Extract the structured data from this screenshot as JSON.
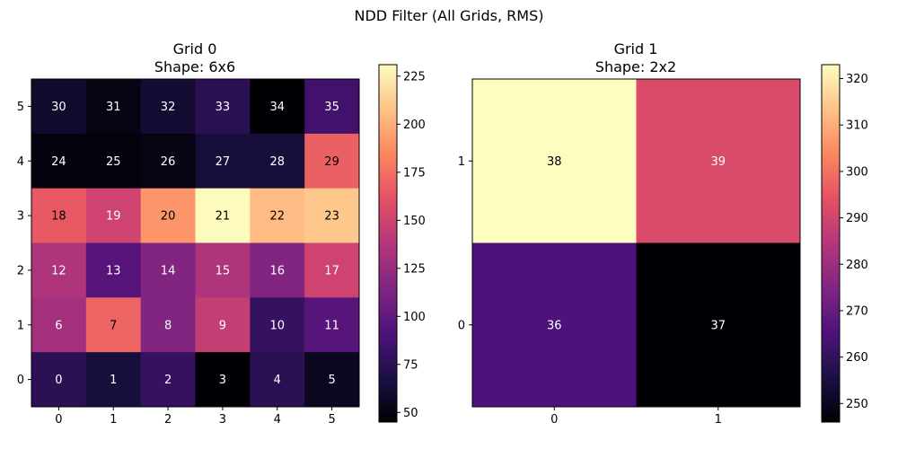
{
  "chart_data": {
    "type": "heatmap",
    "title": "NDD Filter (All Grids, RMS)",
    "colormap": "magma",
    "panels": [
      {
        "title": "Grid 0",
        "subtitle": "Shape: 6x6",
        "x_ticks": [
          "0",
          "1",
          "2",
          "3",
          "4",
          "5"
        ],
        "y_ticks": [
          "0",
          "1",
          "2",
          "3",
          "4",
          "5"
        ],
        "colorbar": {
          "min": 45,
          "max": 231,
          "ticks": [
            50,
            75,
            100,
            125,
            150,
            175,
            200,
            225
          ]
        },
        "rows": [
          {
            "y": 5,
            "labels": [
              "30",
              "31",
              "32",
              "33",
              "34",
              "35"
            ],
            "values": [
              60,
              50,
              62,
              75,
              45,
              85
            ]
          },
          {
            "y": 4,
            "labels": [
              "24",
              "25",
              "26",
              "27",
              "28",
              "29"
            ],
            "values": [
              48,
              48,
              50,
              65,
              65,
              168
            ]
          },
          {
            "y": 3,
            "labels": [
              "18",
              "19",
              "20",
              "21",
              "22",
              "23"
            ],
            "values": [
              165,
              150,
              190,
              230,
              205,
              210
            ]
          },
          {
            "y": 2,
            "labels": [
              "12",
              "13",
              "14",
              "15",
              "16",
              "17"
            ],
            "values": [
              135,
              95,
              115,
              135,
              115,
              150
            ]
          },
          {
            "y": 1,
            "labels": [
              "6",
              "7",
              "8",
              "9",
              "10",
              "11"
            ],
            "values": [
              130,
              170,
              115,
              145,
              80,
              95
            ]
          },
          {
            "y": 0,
            "labels": [
              "0",
              "1",
              "2",
              "3",
              "4",
              "5"
            ],
            "values": [
              75,
              65,
              80,
              45,
              75,
              55
            ]
          }
        ]
      },
      {
        "title": "Grid 1",
        "subtitle": "Shape: 2x2",
        "x_ticks": [
          "0",
          "1"
        ],
        "y_ticks": [
          "0",
          "1"
        ],
        "colorbar": {
          "min": 246,
          "max": 323,
          "ticks": [
            250,
            260,
            270,
            280,
            290,
            300,
            310,
            320
          ]
        },
        "rows": [
          {
            "y": 1,
            "labels": [
              "38",
              "39"
            ],
            "values": [
              323,
              292
            ]
          },
          {
            "y": 0,
            "labels": [
              "36",
              "37"
            ],
            "values": [
              265,
              246
            ]
          }
        ]
      }
    ]
  }
}
